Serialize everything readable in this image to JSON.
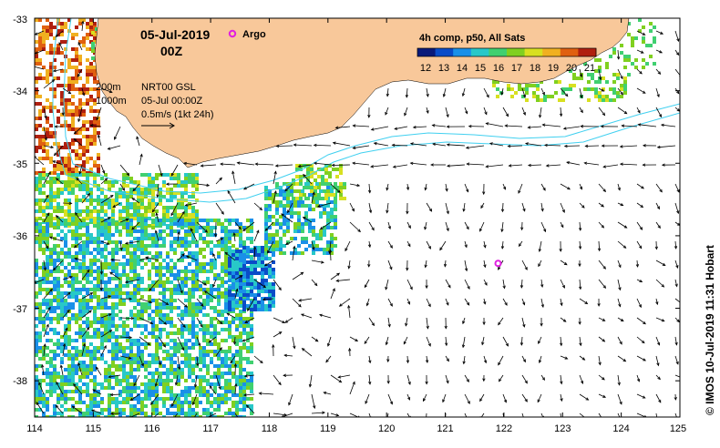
{
  "title": {
    "date": "05-Jul-2019",
    "time": "00Z"
  },
  "legend": {
    "argo_label": "Argo",
    "colorbar_title": "4h comp, p50, All Sats",
    "colorbar_ticks": [
      "12",
      "13",
      "14",
      "15",
      "16",
      "17",
      "18",
      "19",
      "20",
      "21"
    ],
    "colorbar_colors": [
      "#0a1a7a",
      "#0a4cc8",
      "#1a90e8",
      "#28c8c8",
      "#40d070",
      "#80d020",
      "#d8e020",
      "#f0b020",
      "#e06010",
      "#b02010"
    ]
  },
  "annotations": {
    "contour_200": "200m",
    "contour_1000": "1000m",
    "product": "NRT00 GSL",
    "timestamp": "05-Jul 00:00Z",
    "scale": "0.5m/s (1kt 24h)"
  },
  "axes": {
    "longitude_ticks": [
      "114",
      "115",
      "116",
      "117",
      "118",
      "119",
      "120",
      "121",
      "122",
      "123",
      "124",
      "125"
    ],
    "latitude_ticks": [
      "-33",
      "-34",
      "-35",
      "-36",
      "-37",
      "-38"
    ]
  },
  "credit": "© IMOS 10-Jul-2019 11:31 Hobart",
  "colors": {
    "land": "#f8c89a",
    "contour": "#40d0f0",
    "argo": "#e020e0",
    "arrow": "#000000"
  },
  "argo_float": {
    "lon": 121.9,
    "lat": -36.38
  }
}
